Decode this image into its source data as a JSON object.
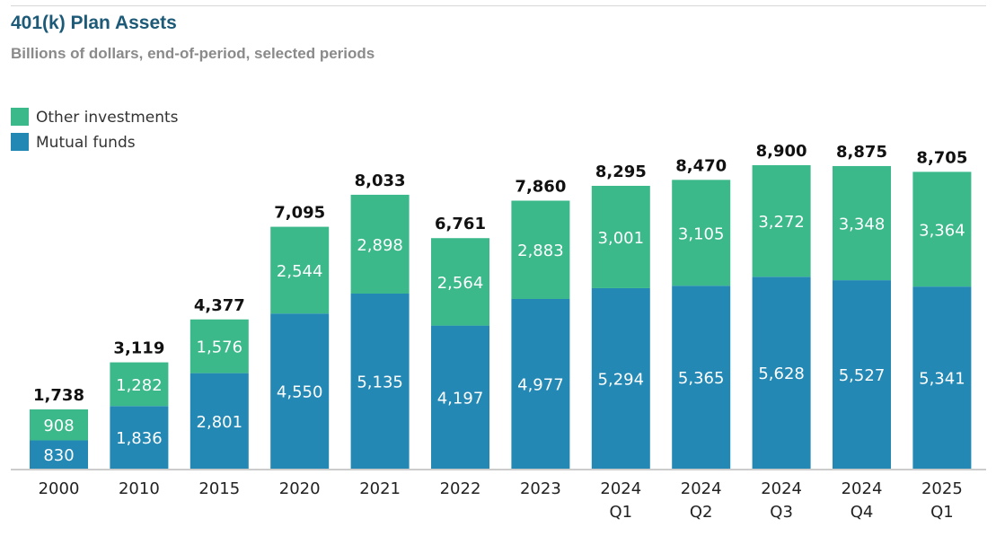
{
  "header": {
    "title": "401(k) Plan Assets",
    "subtitle": "Billions of dollars, end-of-period, selected periods"
  },
  "colors": {
    "mutual_funds": "#2388b4",
    "other_investments": "#3bb98a",
    "axis": "#9a9a9a"
  },
  "chart_data": {
    "type": "bar",
    "stacked": true,
    "title": "401(k) Plan Assets",
    "subtitle": "Billions of dollars, end-of-period, selected periods",
    "xlabel": "",
    "ylabel": "",
    "ylim": [
      0,
      8900
    ],
    "grid": false,
    "legend": "top-left",
    "categories": [
      [
        "2000"
      ],
      [
        "2010"
      ],
      [
        "2015"
      ],
      [
        "2020"
      ],
      [
        "2021"
      ],
      [
        "2022"
      ],
      [
        "2023"
      ],
      [
        "2024",
        "Q1"
      ],
      [
        "2024",
        "Q2"
      ],
      [
        "2024",
        "Q3"
      ],
      [
        "2024",
        "Q4"
      ],
      [
        "2025",
        "Q1"
      ]
    ],
    "series": [
      {
        "name": "Mutual funds",
        "values": [
          830,
          1836,
          2801,
          4550,
          5135,
          4197,
          4977,
          5294,
          5365,
          5628,
          5527,
          5341
        ]
      },
      {
        "name": "Other investments",
        "values": [
          908,
          1282,
          1576,
          2544,
          2898,
          2564,
          2883,
          3001,
          3105,
          3272,
          3348,
          3364
        ]
      }
    ],
    "totals": [
      1738,
      3119,
      4377,
      7095,
      8033,
      6761,
      7860,
      8295,
      8470,
      8900,
      8875,
      8705
    ]
  }
}
